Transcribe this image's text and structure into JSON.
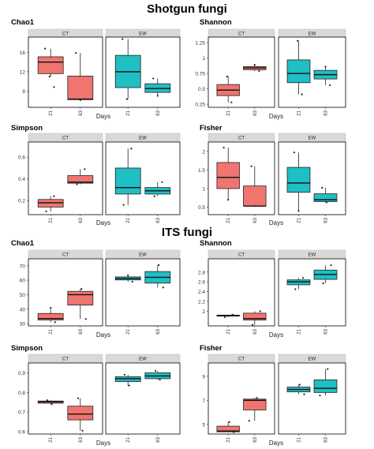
{
  "section_titles": [
    "Shotgun fungi",
    "ITS fungi"
  ],
  "strip_labels": [
    "CT",
    "EW"
  ],
  "x_tick_labels": [
    "21",
    "63"
  ],
  "x_axis_label": "Days",
  "colors": {
    "CT": "#f07470",
    "EW": "#1fbfc4",
    "strip": "#d9d9d9"
  },
  "chart_data": [
    {
      "type": "box",
      "title": "Chao1",
      "section": "Shotgun fungi",
      "yticks": [
        8,
        12,
        16
      ],
      "ylim": [
        4.6,
        19.2
      ],
      "panels": [
        {
          "group": "CT",
          "boxes": [
            {
              "day": "21",
              "whisker_low": 11,
              "q1": 11.6,
              "median": 14.0,
              "q3": 15.1,
              "whisker_high": 16.8,
              "outliers": [
                8.8
              ]
            },
            {
              "day": "63",
              "whisker_low": 6.1,
              "q1": 6.2,
              "median": 6.3,
              "q3": 11.1,
              "whisker_high": 15.9,
              "outliers": []
            }
          ]
        },
        {
          "group": "EW",
          "boxes": [
            {
              "day": "21",
              "whisker_low": 6.3,
              "q1": 8.7,
              "median": 12.0,
              "q3": 15.4,
              "whisker_high": 18.8,
              "outliers": []
            },
            {
              "day": "63",
              "whisker_low": 7.0,
              "q1": 7.7,
              "median": 8.5,
              "q3": 9.5,
              "whisker_high": 10.6,
              "outliers": []
            }
          ]
        }
      ]
    },
    {
      "type": "box",
      "title": "Shannon",
      "section": "Shotgun fungi",
      "yticks": [
        0.25,
        0.5,
        0.75,
        1.0,
        1.25
      ],
      "ylim": [
        0.2,
        1.34
      ],
      "panels": [
        {
          "group": "CT",
          "boxes": [
            {
              "day": "21",
              "whisker_low": 0.28,
              "q1": 0.39,
              "median": 0.48,
              "q3": 0.57,
              "whisker_high": 0.7,
              "outliers": []
            },
            {
              "day": "63",
              "whisker_low": 0.79,
              "q1": 0.81,
              "median": 0.84,
              "q3": 0.86,
              "whisker_high": 0.89,
              "outliers": []
            }
          ]
        },
        {
          "group": "EW",
          "boxes": [
            {
              "day": "21",
              "whisker_low": 0.41,
              "q1": 0.6,
              "median": 0.75,
              "q3": 0.97,
              "whisker_high": 1.28,
              "outliers": []
            },
            {
              "day": "63",
              "whisker_low": 0.56,
              "q1": 0.66,
              "median": 0.73,
              "q3": 0.8,
              "whisker_high": 0.86,
              "outliers": []
            }
          ]
        }
      ]
    },
    {
      "type": "box",
      "title": "Simpson",
      "section": "Shotgun fungi",
      "yticks": [
        0.2,
        0.4,
        0.6
      ],
      "ylim": [
        0.07,
        0.74
      ],
      "panels": [
        {
          "group": "CT",
          "boxes": [
            {
              "day": "21",
              "whisker_low": 0.1,
              "q1": 0.14,
              "median": 0.18,
              "q3": 0.21,
              "whisker_high": 0.24,
              "outliers": []
            },
            {
              "day": "63",
              "whisker_low": 0.35,
              "q1": 0.36,
              "median": 0.37,
              "q3": 0.43,
              "whisker_high": 0.49,
              "outliers": []
            }
          ]
        },
        {
          "group": "EW",
          "boxes": [
            {
              "day": "21",
              "whisker_low": 0.16,
              "q1": 0.26,
              "median": 0.32,
              "q3": 0.5,
              "whisker_high": 0.68,
              "outliers": []
            },
            {
              "day": "63",
              "whisker_low": 0.24,
              "q1": 0.26,
              "median": 0.29,
              "q3": 0.32,
              "whisker_high": 0.37,
              "outliers": []
            }
          ]
        }
      ]
    },
    {
      "type": "box",
      "title": "Fisher",
      "section": "Shotgun fungi",
      "yticks": [
        0.5,
        1.0,
        1.5,
        2.0
      ],
      "ylim": [
        0.3,
        2.25
      ],
      "panels": [
        {
          "group": "CT",
          "boxes": [
            {
              "day": "21",
              "whisker_low": 0.7,
              "q1": 1.0,
              "median": 1.3,
              "q3": 1.7,
              "whisker_high": 2.1,
              "outliers": []
            },
            {
              "day": "63",
              "whisker_low": 0.53,
              "q1": 0.53,
              "median": 0.53,
              "q3": 1.07,
              "whisker_high": 1.6,
              "outliers": []
            }
          ]
        },
        {
          "group": "EW",
          "boxes": [
            {
              "day": "21",
              "whisker_low": 0.4,
              "q1": 0.9,
              "median": 1.15,
              "q3": 1.57,
              "whisker_high": 1.97,
              "outliers": []
            },
            {
              "day": "63",
              "whisker_low": 0.63,
              "q1": 0.65,
              "median": 0.7,
              "q3": 0.86,
              "whisker_high": 1.02,
              "outliers": []
            }
          ]
        }
      ]
    },
    {
      "type": "box",
      "title": "Chao1",
      "section": "ITS fungi",
      "yticks": [
        30,
        40,
        50,
        60,
        70
      ],
      "ylim": [
        28.4,
        74.8
      ],
      "panels": [
        {
          "group": "CT",
          "boxes": [
            {
              "day": "21",
              "whisker_low": 31,
              "q1": 32.5,
              "median": 33.5,
              "q3": 37.0,
              "whisker_high": 41.0,
              "outliers": []
            },
            {
              "day": "63",
              "whisker_low": 33.2,
              "q1": 42.8,
              "median": 50.0,
              "q3": 52.3,
              "whisker_high": 54.0,
              "outliers": []
            }
          ]
        },
        {
          "group": "EW",
          "boxes": [
            {
              "day": "21",
              "whisker_low": 59.0,
              "q1": 60.2,
              "median": 61.2,
              "q3": 62.3,
              "whisker_high": 63.4,
              "outliers": []
            },
            {
              "day": "63",
              "whisker_low": 55.0,
              "q1": 58.0,
              "median": 62.0,
              "q3": 66.0,
              "whisker_high": 70.5,
              "outliers": []
            }
          ]
        }
      ]
    },
    {
      "type": "box",
      "title": "Shannon",
      "section": "ITS fungi",
      "yticks": [
        2.0,
        2.2,
        2.4,
        2.6,
        2.8
      ],
      "ylim": [
        1.7,
        3.07
      ],
      "panels": [
        {
          "group": "CT",
          "boxes": [
            {
              "day": "21",
              "whisker_low": 1.88,
              "q1": 1.9,
              "median": 1.91,
              "q3": 1.92,
              "whisker_high": 1.93,
              "outliers": []
            },
            {
              "day": "63",
              "whisker_low": 1.72,
              "q1": 1.82,
              "median": 1.85,
              "q3": 1.96,
              "whisker_high": 2.0,
              "outliers": []
            }
          ]
        },
        {
          "group": "EW",
          "boxes": [
            {
              "day": "21",
              "whisker_low": 2.45,
              "q1": 2.54,
              "median": 2.6,
              "q3": 2.64,
              "whisker_high": 2.68,
              "outliers": []
            },
            {
              "day": "63",
              "whisker_low": 2.57,
              "q1": 2.65,
              "median": 2.75,
              "q3": 2.84,
              "whisker_high": 2.94,
              "outliers": []
            }
          ]
        }
      ]
    },
    {
      "type": "box",
      "title": "Simpson",
      "section": "ITS fungi",
      "yticks": [
        0.6,
        0.7,
        0.8,
        0.9
      ],
      "ylim": [
        0.588,
        0.95
      ],
      "panels": [
        {
          "group": "CT",
          "boxes": [
            {
              "day": "21",
              "whisker_low": 0.74,
              "q1": 0.745,
              "median": 0.752,
              "q3": 0.756,
              "whisker_high": 0.76,
              "outliers": []
            },
            {
              "day": "63",
              "whisker_low": 0.605,
              "q1": 0.66,
              "median": 0.69,
              "q3": 0.73,
              "whisker_high": 0.77,
              "outliers": []
            }
          ]
        },
        {
          "group": "EW",
          "boxes": [
            {
              "day": "21",
              "whisker_low": 0.835,
              "q1": 0.855,
              "median": 0.87,
              "q3": 0.88,
              "whisker_high": 0.89,
              "outliers": []
            },
            {
              "day": "63",
              "whisker_low": 0.865,
              "q1": 0.87,
              "median": 0.884,
              "q3": 0.9,
              "whisker_high": 0.91,
              "outliers": []
            }
          ]
        }
      ]
    },
    {
      "type": "box",
      "title": "Fisher",
      "section": "ITS fungi",
      "yticks": [
        5,
        7,
        9
      ],
      "ylim": [
        4.2,
        10.1
      ],
      "panels": [
        {
          "group": "CT",
          "boxes": [
            {
              "day": "21",
              "whisker_low": 4.35,
              "q1": 4.38,
              "median": 4.45,
              "q3": 4.85,
              "whisker_high": 5.2,
              "outliers": []
            },
            {
              "day": "63",
              "whisker_low": 5.3,
              "q1": 6.2,
              "median": 7.0,
              "q3": 7.1,
              "whisker_high": 7.2,
              "outliers": []
            }
          ]
        },
        {
          "group": "EW",
          "boxes": [
            {
              "day": "21",
              "whisker_low": 7.5,
              "q1": 7.7,
              "median": 7.9,
              "q3": 8.1,
              "whisker_high": 8.3,
              "outliers": []
            },
            {
              "day": "63",
              "whisker_low": 7.4,
              "q1": 7.65,
              "median": 8.0,
              "q3": 8.7,
              "whisker_high": 9.6,
              "outliers": []
            }
          ]
        }
      ]
    }
  ]
}
